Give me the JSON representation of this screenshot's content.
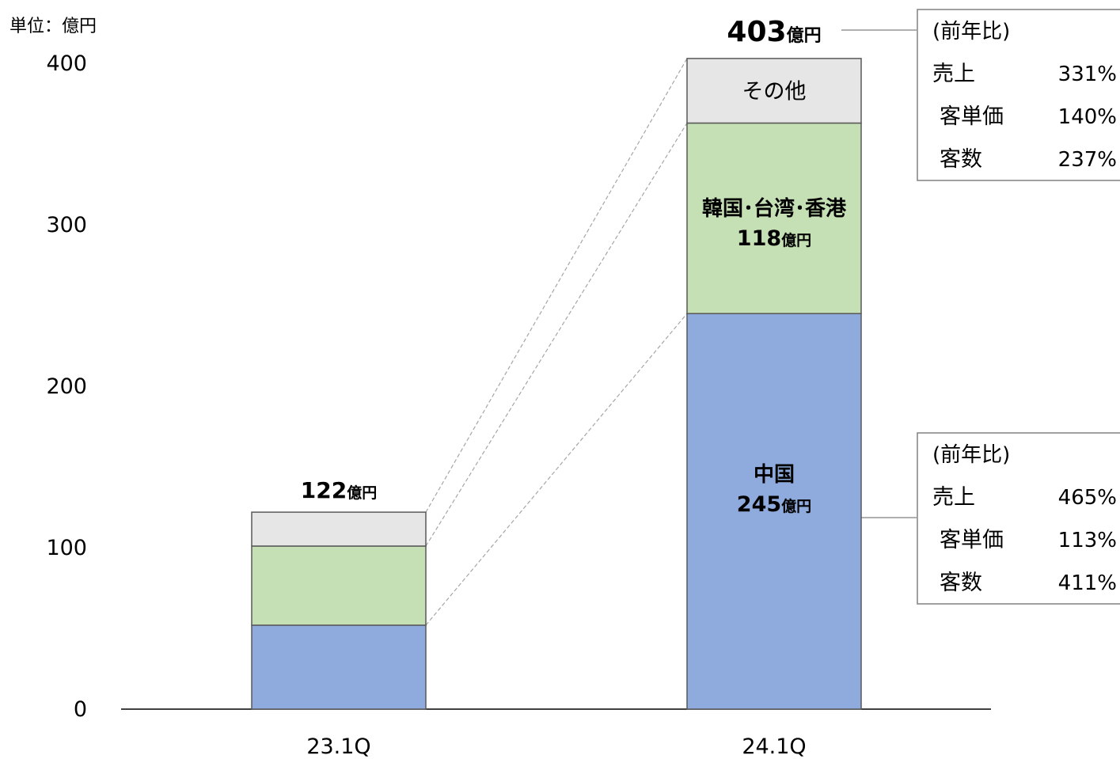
{
  "chart_data": {
    "type": "bar",
    "stacked": true,
    "unit_label": "単位：億円",
    "categories": [
      "23.1Q",
      "24.1Q"
    ],
    "ylim": [
      0,
      400
    ],
    "yticks": [
      0,
      100,
      200,
      300,
      400
    ],
    "grid": false,
    "series": [
      {
        "key": "china",
        "name": "中国",
        "values": [
          52,
          245
        ],
        "color": "#8faadc"
      },
      {
        "key": "kth",
        "name": "韓国･台湾･香港",
        "values": [
          49,
          118
        ],
        "color": "#c5e0b4"
      },
      {
        "key": "other",
        "name": "その他",
        "values": [
          21,
          40
        ],
        "color": "#e7e6e6"
      }
    ],
    "totals": [
      {
        "value": "122",
        "unit": "億円"
      },
      {
        "value": "403",
        "unit": "億円"
      }
    ],
    "segment_labels": [
      {
        "category": 1,
        "series": 2,
        "name": "その他",
        "value": "",
        "unit": ""
      },
      {
        "category": 1,
        "series": 1,
        "name": "韓国･台湾･香港",
        "value": "118",
        "unit": "億円"
      },
      {
        "category": 1,
        "series": 0,
        "name": "中国",
        "value": "245",
        "unit": "億円"
      }
    ],
    "callouts": [
      {
        "attached_to": "total-24.1Q",
        "title": "(前年比)",
        "rows": [
          {
            "label": "売上",
            "value": "331%"
          },
          {
            "label": "客単価",
            "value": "140%"
          },
          {
            "label": "客数",
            "value": "237%"
          }
        ]
      },
      {
        "attached_to": "china-24.1Q",
        "title": "(前年比)",
        "rows": [
          {
            "label": "売上",
            "value": "465%"
          },
          {
            "label": "客単価",
            "value": "113%"
          },
          {
            "label": "客数",
            "value": "411%"
          }
        ]
      }
    ]
  }
}
